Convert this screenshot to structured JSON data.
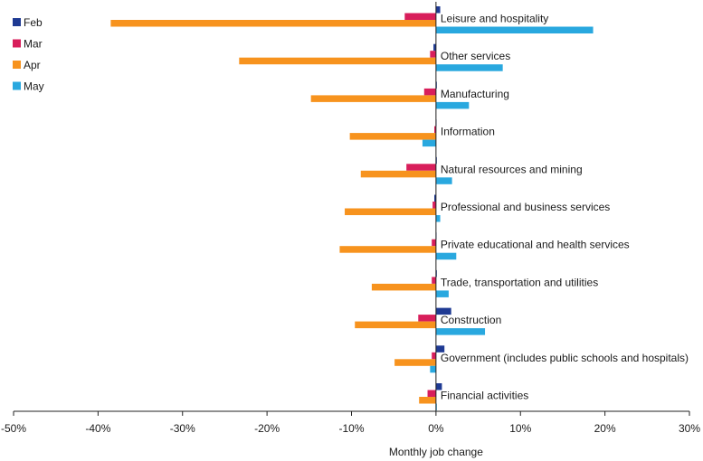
{
  "chart_data": {
    "type": "bar",
    "orientation": "horizontal",
    "title": "",
    "xlabel": "Monthly job change",
    "ylabel": "",
    "xlim": [
      -50,
      30
    ],
    "x_ticks": [
      -50,
      -40,
      -30,
      -20,
      -10,
      0,
      10,
      20,
      30
    ],
    "x_tick_labels": [
      "-50%",
      "-40%",
      "-30%",
      "-20%",
      "-10%",
      "0%",
      "10%",
      "20%",
      "30%"
    ],
    "value_unit": "%",
    "grid": false,
    "legend_position": "top-left",
    "categories": [
      "Leisure and hospitality",
      "Other services",
      "Manufacturing",
      "Information",
      "Natural resources and mining",
      "Professional and business services",
      "Private educational and health services",
      "Trade, transportation and utilities",
      "Construction",
      "Government (includes public schools and hospitals)",
      "Financial activities"
    ],
    "series": [
      {
        "name": "Feb",
        "color": "#1f3a93",
        "values": [
          0.5,
          -0.3,
          0.1,
          0.0,
          0.1,
          -0.2,
          0.0,
          0.1,
          1.8,
          1.0,
          0.7
        ]
      },
      {
        "name": "Mar",
        "color": "#d81e5b",
        "values": [
          -3.7,
          -0.7,
          -1.4,
          -0.2,
          -3.5,
          -0.4,
          -0.5,
          -0.5,
          -2.1,
          -0.5,
          -1.0
        ]
      },
      {
        "name": "Apr",
        "color": "#f7931e",
        "values": [
          -38.5,
          -23.3,
          -14.8,
          -10.2,
          -8.9,
          -10.8,
          -11.4,
          -7.6,
          -9.6,
          -4.9,
          -2.0
        ]
      },
      {
        "name": "May",
        "color": "#29a8df",
        "values": [
          18.6,
          7.9,
          3.9,
          -1.6,
          1.9,
          0.5,
          2.4,
          1.5,
          5.8,
          -0.7,
          0.1
        ]
      }
    ]
  }
}
